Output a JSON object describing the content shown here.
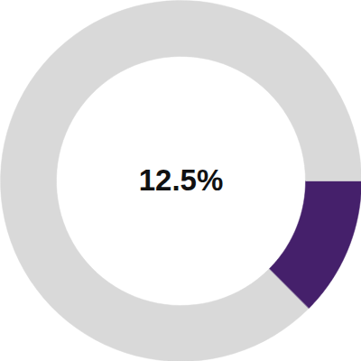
{
  "chart_data": {
    "type": "donut",
    "values": [
      12.5,
      87.5
    ],
    "colors": [
      "#45206b",
      "#d9d9d9"
    ],
    "annotation": "12.5%"
  }
}
